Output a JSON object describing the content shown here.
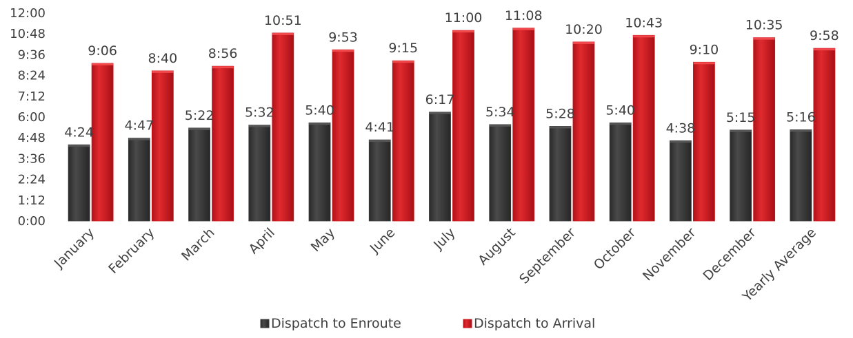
{
  "chart_data": {
    "type": "bar",
    "title": "",
    "xlabel": "",
    "ylabel": "",
    "y_format": "h:mm",
    "ylim_minutes": [
      0,
      720
    ],
    "y_ticks": [
      "0:00",
      "1:12",
      "2:24",
      "3:36",
      "4:48",
      "6:00",
      "7:12",
      "8:24",
      "9:36",
      "10:48",
      "12:00"
    ],
    "categories": [
      "January",
      "February",
      "March",
      "April",
      "May",
      "June",
      "July",
      "August",
      "September",
      "October",
      "November",
      "December",
      "Yearly Average"
    ],
    "series": [
      {
        "name": "Dispatch to Enroute",
        "color": "#3a3a3a",
        "labels": [
          "4:24",
          "4:47",
          "5:22",
          "5:32",
          "5:40",
          "4:41",
          "6:17",
          "5:34",
          "5:28",
          "5:40",
          "4:38",
          "5:15",
          "5:16"
        ],
        "values_minutes": [
          264,
          287,
          322,
          332,
          340,
          281,
          377,
          334,
          328,
          340,
          278,
          315,
          316
        ]
      },
      {
        "name": "Dispatch to Arrival",
        "color": "#c8161b",
        "labels": [
          "9:06",
          "8:40",
          "8:56",
          "10:51",
          "9:53",
          "9:15",
          "11:00",
          "11:08",
          "10:20",
          "10:43",
          "9:10",
          "10:35",
          "9:58"
        ],
        "values_minutes": [
          546,
          520,
          536,
          651,
          593,
          555,
          660,
          668,
          620,
          643,
          550,
          635,
          598
        ]
      }
    ],
    "legend_position": "bottom",
    "grid": false
  }
}
